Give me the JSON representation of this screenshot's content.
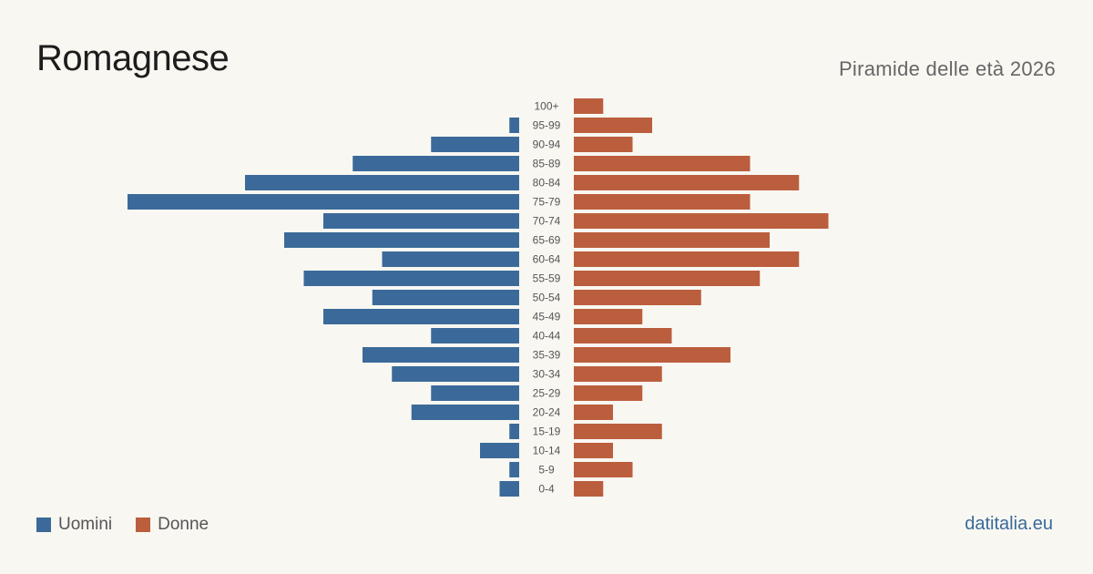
{
  "header": {
    "title": "Romagnese",
    "subtitle": "Piramide delle età 2026"
  },
  "legend": {
    "male_label": "Uomini",
    "female_label": "Donne"
  },
  "brand": "datitalia.eu",
  "colors": {
    "male": "#3b6a9a",
    "female": "#bb5e3d",
    "background": "#f9f7f2",
    "label": "#555555"
  },
  "chart_data": {
    "type": "bar",
    "orientation": "horizontal",
    "variant": "population-pyramid",
    "categories": [
      "100+",
      "95-99",
      "90-94",
      "85-89",
      "80-84",
      "75-79",
      "70-74",
      "65-69",
      "60-64",
      "55-59",
      "50-54",
      "45-49",
      "40-44",
      "35-39",
      "30-34",
      "25-29",
      "20-24",
      "15-19",
      "10-14",
      "5-9",
      "0-4"
    ],
    "series": [
      {
        "name": "Uomini",
        "values": [
          0,
          1,
          9,
          17,
          28,
          40,
          20,
          24,
          14,
          22,
          15,
          20,
          9,
          16,
          13,
          9,
          11,
          1,
          4,
          1,
          2
        ]
      },
      {
        "name": "Donne",
        "values": [
          3,
          8,
          6,
          18,
          23,
          18,
          26,
          20,
          23,
          19,
          13,
          7,
          10,
          16,
          9,
          7,
          4,
          9,
          4,
          6,
          3
        ]
      }
    ],
    "xlim": [
      0,
      40
    ]
  }
}
